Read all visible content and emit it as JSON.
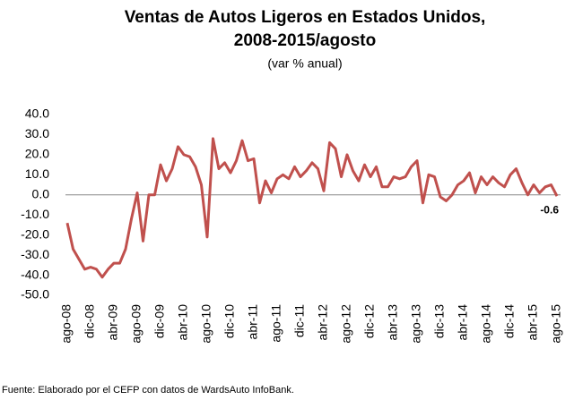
{
  "chart_data": {
    "type": "line",
    "title_lines": [
      "Ventas de Autos Ligeros en Estados Unidos,",
      "2008-2015/agosto"
    ],
    "subtitle": "(var % anual)",
    "source": "Fuente: Elaborado por el CEFP con datos de WardsAuto InfoBank.",
    "categories": [
      "ago-08",
      null,
      null,
      null,
      "dic-08",
      null,
      null,
      null,
      "abr-09",
      null,
      null,
      null,
      "ago-09",
      null,
      null,
      null,
      "dic-09",
      null,
      null,
      null,
      "abr-10",
      null,
      null,
      null,
      "ago-10",
      null,
      null,
      null,
      "dic-10",
      null,
      null,
      null,
      "abr-11",
      null,
      null,
      null,
      "ago-11",
      null,
      null,
      null,
      "dic-11",
      null,
      null,
      null,
      "abr-12",
      null,
      null,
      null,
      "ago-12",
      null,
      null,
      null,
      "dic-12",
      null,
      null,
      null,
      "abr-13",
      null,
      null,
      null,
      "ago-13",
      null,
      null,
      null,
      "dic-13",
      null,
      null,
      null,
      "abr-14",
      null,
      null,
      null,
      "ago-14",
      null,
      null,
      null,
      "dic-14",
      null,
      null,
      null,
      "abr-15",
      null,
      null,
      null,
      "ago-15"
    ],
    "series": [
      {
        "name": "Ventas",
        "color": "#c0504d",
        "values": [
          -14,
          -27,
          -32,
          -37,
          -36,
          -37,
          -41,
          -37,
          -34,
          -34,
          -27,
          -12,
          1,
          -23,
          0,
          0,
          15,
          7,
          13,
          24,
          20,
          19,
          14,
          5,
          -21,
          28,
          13,
          16,
          11,
          17,
          27,
          17,
          18,
          -4,
          7,
          1,
          8,
          10,
          8,
          14,
          9,
          12,
          16,
          13,
          2,
          26,
          23,
          9,
          20,
          12,
          7,
          15,
          9,
          14,
          4,
          4,
          9,
          8,
          9,
          14,
          17,
          -4,
          10,
          9,
          -1,
          -3,
          0,
          5,
          7,
          11,
          1,
          9,
          5,
          9,
          6,
          4,
          10,
          13,
          6,
          0,
          5,
          1,
          4,
          5,
          -0.6
        ]
      }
    ],
    "ylim": [
      -50,
      40
    ],
    "yticks": [
      {
        "value": 40,
        "label": "40.0"
      },
      {
        "value": 30,
        "label": "30.0"
      },
      {
        "value": 20,
        "label": "20.0"
      },
      {
        "value": 10,
        "label": "10.0"
      },
      {
        "value": 0,
        "label": "0.0"
      },
      {
        "value": -10,
        "label": "-10.0"
      },
      {
        "value": -20,
        "label": "-20.0"
      },
      {
        "value": -30,
        "label": "-30.0"
      },
      {
        "value": -40,
        "label": "-40.0"
      },
      {
        "value": -50,
        "label": "-50.0"
      }
    ],
    "labeled_point": 84,
    "grid": false
  }
}
